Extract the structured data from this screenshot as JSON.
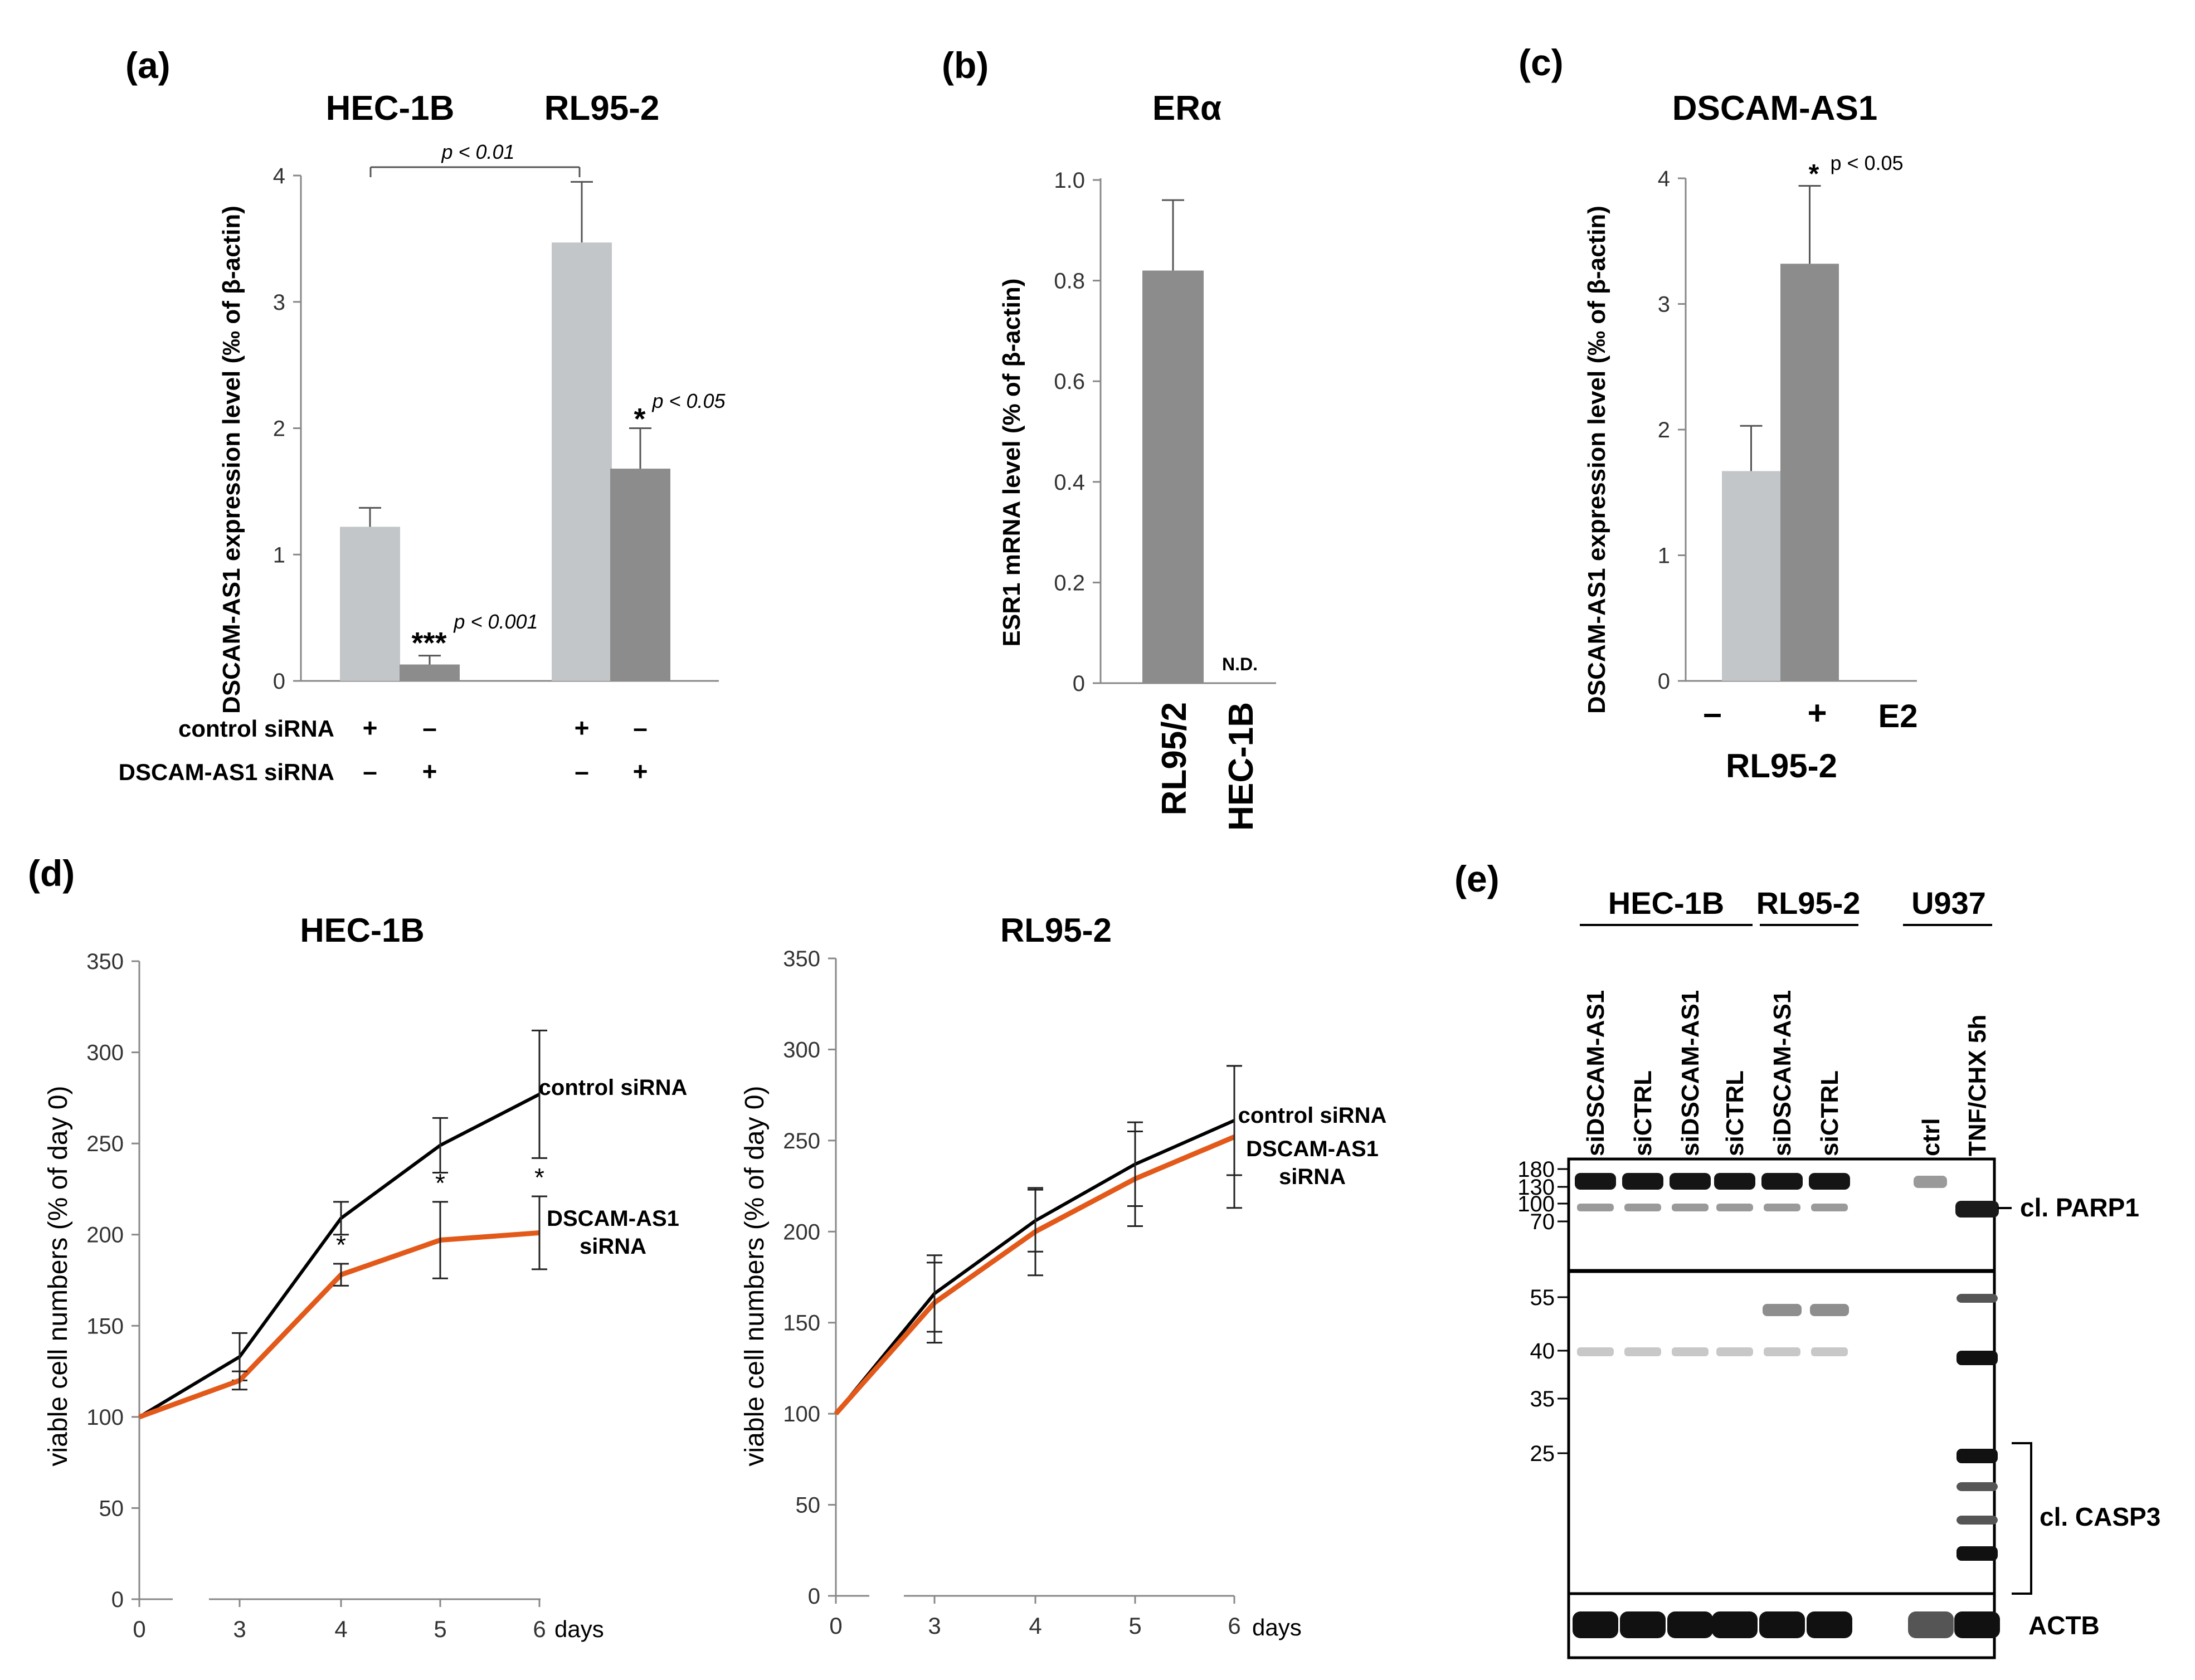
{
  "panels": {
    "a": {
      "letter": "(a)"
    },
    "b": {
      "letter": "(b)"
    },
    "c": {
      "letter": "(c)"
    },
    "d": {
      "letter": "(d)"
    },
    "e": {
      "letter": "(e)"
    }
  },
  "chart_data": [
    {
      "id": "a",
      "type": "bar",
      "group_labels": [
        "HEC-1B",
        "RL95-2"
      ],
      "ylabel": "DSCAM-AS1 expression level (‰ of β-actin)",
      "ylim": [
        0,
        4
      ],
      "yticks": [
        "0",
        "1",
        "2",
        "3",
        "4"
      ],
      "bars": [
        {
          "group": "HEC-1B",
          "treatment": "control siRNA",
          "value": 1.22,
          "error": 0.15,
          "color": "#c3c6c8"
        },
        {
          "group": "HEC-1B",
          "treatment": "DSCAM-AS1 siRNA",
          "value": 0.13,
          "error": 0.07,
          "color": "#8c8c8c"
        },
        {
          "group": "RL95-2",
          "treatment": "control siRNA",
          "value": 3.47,
          "error": 0.48,
          "color": "#c3c6c8"
        },
        {
          "group": "RL95-2",
          "treatment": "DSCAM-AS1 siRNA",
          "value": 1.68,
          "error": 0.32,
          "color": "#8c8c8c"
        }
      ],
      "annotations": {
        "bracket_p": "p < 0.01",
        "stars_hec": "***",
        "p_hec": "p < 0.001",
        "star_rl": "*",
        "p_rl": "p < 0.05"
      },
      "treatment_table": {
        "rows": [
          {
            "label": "control siRNA",
            "marks": [
              "+",
              "–",
              "+",
              "–"
            ]
          },
          {
            "label": "DSCAM-AS1 siRNA",
            "marks": [
              "–",
              "+",
              "–",
              "+"
            ]
          }
        ]
      }
    },
    {
      "id": "b",
      "type": "bar",
      "title": "ERα",
      "ylabel": "ESR1 mRNA level (% of β-actin)",
      "ylim": [
        0,
        1.0
      ],
      "yticks": [
        "0",
        "0.2",
        "0.4",
        "0.6",
        "0.8",
        "1.0"
      ],
      "categories": [
        "RL95/2",
        "HEC-1B"
      ],
      "values": [
        0.82,
        0
      ],
      "errors": [
        0.14,
        0
      ],
      "color": "#8c8c8c",
      "nd_label": "N.D."
    },
    {
      "id": "c",
      "type": "bar",
      "title": "DSCAM-AS1",
      "ylabel": "DSCAM-AS1 expression level (‰ of β-actin)",
      "ylim": [
        0,
        4
      ],
      "yticks": [
        "0",
        "1",
        "2",
        "3",
        "4"
      ],
      "categories": [
        "–",
        "+"
      ],
      "values": [
        1.67,
        3.32
      ],
      "errors": [
        0.36,
        0.62
      ],
      "colors": [
        "#c3c6c8",
        "#8c8c8c"
      ],
      "treatment_label": "E2",
      "group_label": "RL95-2",
      "star": "*",
      "p_label": "p < 0.05"
    },
    {
      "id": "d1",
      "type": "line",
      "title": "HEC-1B",
      "ylabel": "viable cell numbers (% of day 0)",
      "ylim": [
        0,
        350
      ],
      "yticks": [
        "0",
        "50",
        "100",
        "150",
        "200",
        "250",
        "300",
        "350"
      ],
      "xticks": [
        "0",
        "3",
        "4",
        "5",
        "6"
      ],
      "x": [
        0,
        3,
        4,
        5,
        6
      ],
      "x_unit": "days",
      "series": [
        {
          "name": "control siRNA",
          "values": [
            100,
            133,
            209,
            249,
            277
          ],
          "errors": [
            0,
            13,
            9,
            15,
            35
          ],
          "color": "#000000"
        },
        {
          "name": "DSCAM-AS1 siRNA",
          "values": [
            100,
            120,
            178,
            197,
            201
          ],
          "errors": [
            0,
            5,
            6,
            21,
            20
          ],
          "color": "#e2591a"
        }
      ],
      "legend": [
        {
          "text": "control siRNA"
        },
        {
          "text": "DSCAM-AS1"
        },
        {
          "text": "siRNA"
        }
      ],
      "stars": [
        "*",
        "*",
        "*"
      ]
    },
    {
      "id": "d2",
      "type": "line",
      "title": "RL95-2",
      "ylabel": "viable cell numbers (% of day 0)",
      "ylim": [
        0,
        350
      ],
      "yticks": [
        "0",
        "50",
        "100",
        "150",
        "200",
        "250",
        "300",
        "350"
      ],
      "xticks": [
        "0",
        "3",
        "4",
        "5",
        "6"
      ],
      "x": [
        0,
        3,
        4,
        5,
        6
      ],
      "x_unit": "days",
      "series": [
        {
          "name": "control siRNA",
          "values": [
            100,
            166,
            206,
            237,
            261
          ],
          "errors": [
            0,
            21,
            17,
            23,
            30
          ],
          "color": "#000000"
        },
        {
          "name": "DSCAM-AS1 siRNA",
          "values": [
            100,
            161,
            200,
            229,
            252
          ],
          "errors": [
            0,
            22,
            24,
            26,
            39
          ],
          "color": "#e2591a"
        }
      ],
      "legend": [
        {
          "text": "control siRNA"
        },
        {
          "text": "DSCAM-AS1"
        },
        {
          "text": "siRNA"
        }
      ]
    },
    {
      "id": "e",
      "type": "table",
      "group_labels": [
        "HEC-1B",
        "RL95-2",
        "U937"
      ],
      "lane_labels": [
        "siDSCAM-AS1",
        "siCTRL",
        "siDSCAM-AS1",
        "siCTRL",
        "siDSCAM-AS1",
        "siCTRL",
        "ctrl",
        "TNF/CHX 5h"
      ],
      "top_markers": [
        "180",
        "130",
        "100",
        "70"
      ],
      "mid_markers": [
        "55",
        "40",
        "35",
        "25"
      ],
      "band_labels": [
        "cl. PARP1",
        "cl. CASP3",
        "ACTB"
      ]
    }
  ]
}
